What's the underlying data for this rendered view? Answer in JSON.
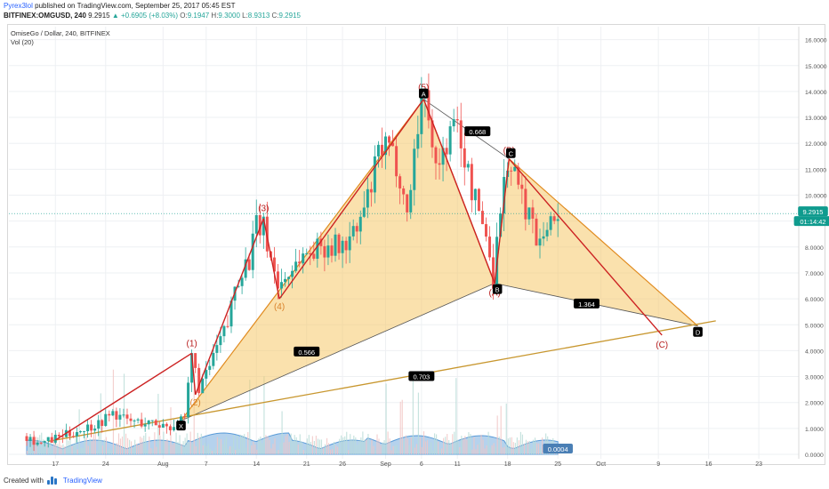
{
  "header": {
    "author": "Pyrex3lol",
    "publish_text": " published on TradingView.com, September 25, 2017 05:45 EST",
    "symbol": "BITFINEX:OMGUSD, 240",
    "last": "9.2915",
    "change": "▲ +0.6905 (+8.03%)",
    "o_label": "O:",
    "o_value": "9.1947",
    "h_label": "H:",
    "h_value": "9.3000",
    "l_label": "L:",
    "l_value": "8.9313",
    "c_label": "C:",
    "c_value": "9.2915"
  },
  "legend": {
    "title": "OmiseGo / Dollar, 240, BITFINEX",
    "indicator": "Vol (20)"
  },
  "footer": {
    "created_with": "Created with",
    "brand": "TradingView"
  },
  "colors": {
    "up": "#26a69a",
    "down": "#ef5350",
    "wave": "#cc2222",
    "pattern_fill": "#f5c96a",
    "pattern_line": "#e08a1e",
    "trend": "#c8972f",
    "volume": "#5a9bd8",
    "price_tag": "#0f9b8e"
  },
  "chart_data": {
    "type": "candlestick",
    "price_axis": {
      "min": 0,
      "max": 16,
      "ticks": [
        "0.0000",
        "1.0000",
        "2.0000",
        "3.0000",
        "4.0000",
        "5.0000",
        "6.0000",
        "7.0000",
        "8.0000",
        "9.0000",
        "10.0000",
        "11.0000",
        "12.0000",
        "13.0000",
        "14.0000",
        "15.0000",
        "16.0000"
      ]
    },
    "time_axis": {
      "labels": [
        "17",
        "24",
        "Aug",
        "7",
        "14",
        "21",
        "26",
        "Sep",
        "6",
        "11",
        "18",
        "25",
        "Oct",
        "9",
        "16",
        "23"
      ],
      "label_days": [
        17,
        24,
        32,
        38,
        45,
        52,
        57,
        63,
        68,
        73,
        80,
        87,
        93,
        101,
        108,
        115
      ]
    },
    "price_tag": "9.2915",
    "countdown": "01:14:42",
    "price_path": [
      [
        13,
        0.7
      ],
      [
        15,
        0.4
      ],
      [
        17,
        0.6
      ],
      [
        20,
        0.9
      ],
      [
        23,
        1.2
      ],
      [
        25,
        1.6
      ],
      [
        27,
        1.3
      ],
      [
        30,
        1.2
      ],
      [
        33,
        1.1
      ],
      [
        35,
        1.3
      ],
      [
        36,
        3.8
      ],
      [
        37,
        2.6
      ],
      [
        38,
        3.0
      ],
      [
        39,
        3.8
      ],
      [
        41,
        5.0
      ],
      [
        42,
        6.5
      ],
      [
        43,
        7.2
      ],
      [
        44,
        7.5
      ],
      [
        45,
        8.8
      ],
      [
        46,
        8.7
      ],
      [
        47,
        7.6
      ],
      [
        48,
        6.5
      ],
      [
        49,
        6.8
      ],
      [
        51,
        7.6
      ],
      [
        53,
        7.9
      ],
      [
        55,
        8.1
      ],
      [
        57,
        8.0
      ],
      [
        59,
        8.6
      ],
      [
        61,
        10.3
      ],
      [
        62,
        11.6
      ],
      [
        63,
        11.8
      ],
      [
        64,
        11.5
      ],
      [
        65,
        10.8
      ],
      [
        66,
        9.2
      ],
      [
        67,
        11.7
      ],
      [
        68,
        13.8
      ],
      [
        69,
        13.4
      ],
      [
        70,
        11.0
      ],
      [
        71,
        11.6
      ],
      [
        72,
        12.4
      ],
      [
        73,
        12.7
      ],
      [
        74,
        11.4
      ],
      [
        75,
        10.2
      ],
      [
        76,
        9.4
      ],
      [
        77,
        8.5
      ],
      [
        78,
        6.8
      ],
      [
        79,
        9.6
      ],
      [
        80,
        11.3
      ],
      [
        81,
        10.8
      ],
      [
        82,
        9.8
      ],
      [
        83,
        9.3
      ],
      [
        84,
        8.4
      ],
      [
        85,
        8.8
      ],
      [
        86,
        8.9
      ],
      [
        87,
        9.3
      ]
    ],
    "waves": [
      {
        "label": "(1)",
        "day": 36,
        "price": 3.9
      },
      {
        "label": "(2)",
        "day": 36.5,
        "price": 2.3
      },
      {
        "label": "(3)",
        "day": 46,
        "price": 9.1
      },
      {
        "label": "(4)",
        "day": 48.2,
        "price": 6.0
      },
      {
        "label": "(5)",
        "day": 68.3,
        "price": 13.7
      },
      {
        "label": "(A)",
        "day": 78.2,
        "price": 6.6
      },
      {
        "label": "(B)",
        "day": 80.2,
        "price": 11.4
      },
      {
        "label": "(C)",
        "day": 101.5,
        "price": 4.6
      }
    ],
    "harmonic": {
      "X": {
        "day": 34.5,
        "price": 1.3
      },
      "A": {
        "day": 68.3,
        "price": 13.7
      },
      "B": {
        "day": 78.2,
        "price": 6.6
      },
      "C": {
        "day": 80.2,
        "price": 11.4
      },
      "D": {
        "day": 106.5,
        "price": 4.95
      }
    },
    "ratios": [
      {
        "text": "0.566",
        "day": 52,
        "price": 3.95
      },
      {
        "text": "0.668",
        "day": 75.8,
        "price": 12.45
      },
      {
        "text": "1.364",
        "day": 91,
        "price": 5.8
      },
      {
        "text": "0.703",
        "day": 68,
        "price": 3.0
      }
    ],
    "point_labels": [
      "X",
      "A",
      "B",
      "C",
      "D"
    ],
    "vol_label": "0.0004"
  }
}
